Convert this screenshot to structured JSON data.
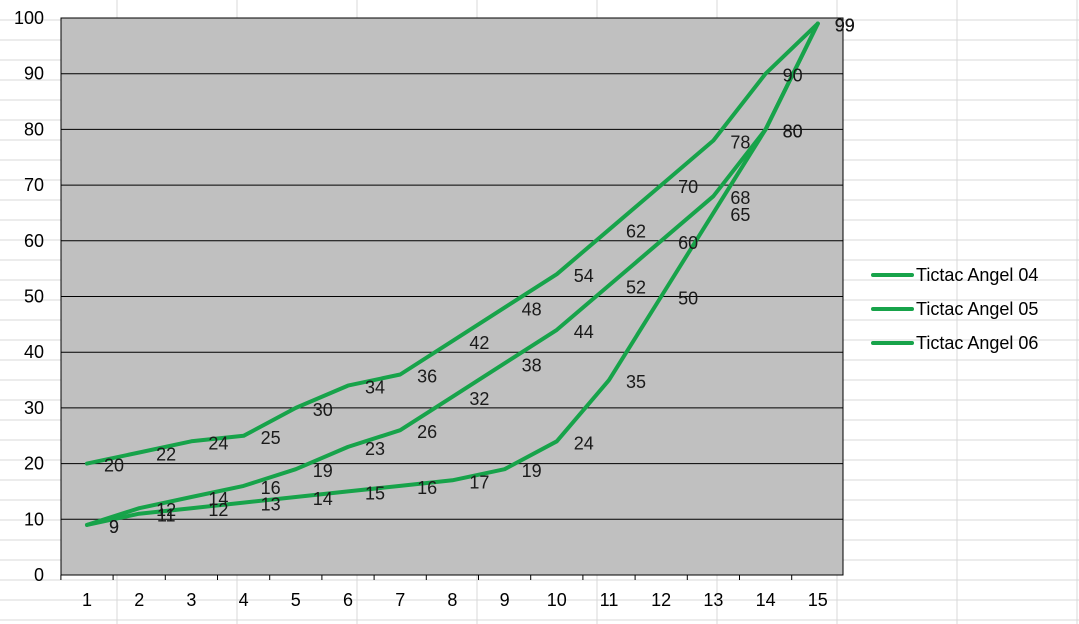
{
  "chart_data": {
    "type": "line",
    "x": [
      1,
      2,
      3,
      4,
      5,
      6,
      7,
      8,
      9,
      10,
      11,
      12,
      13,
      14,
      15
    ],
    "series": [
      {
        "name": "Tictac Angel 04",
        "values": [
          20,
          22,
          24,
          25,
          30,
          34,
          36,
          42,
          48,
          54,
          62,
          70,
          78,
          90,
          99
        ]
      },
      {
        "name": "Tictac Angel 05",
        "values": [
          9,
          12,
          14,
          16,
          19,
          23,
          26,
          32,
          38,
          44,
          52,
          60,
          68,
          80,
          99
        ]
      },
      {
        "name": "Tictac Angel 06",
        "values": [
          9,
          11,
          12,
          13,
          14,
          15,
          16,
          17,
          19,
          24,
          35,
          50,
          65,
          80,
          99
        ]
      }
    ],
    "x_ticks": [
      "1",
      "2",
      "3",
      "4",
      "5",
      "6",
      "7",
      "8",
      "9",
      "10",
      "11",
      "12",
      "13",
      "14",
      "15"
    ],
    "y_ticks": [
      "0",
      "10",
      "20",
      "30",
      "40",
      "50",
      "60",
      "70",
      "80",
      "90",
      "100"
    ],
    "ylim": [
      0,
      100
    ],
    "grid": true,
    "legend": "right",
    "colors": {
      "line": "#17a34a",
      "plot_bg": "#c0c0c0",
      "gridline": "#000000",
      "sheet_grid": "#d9d9d9"
    }
  }
}
